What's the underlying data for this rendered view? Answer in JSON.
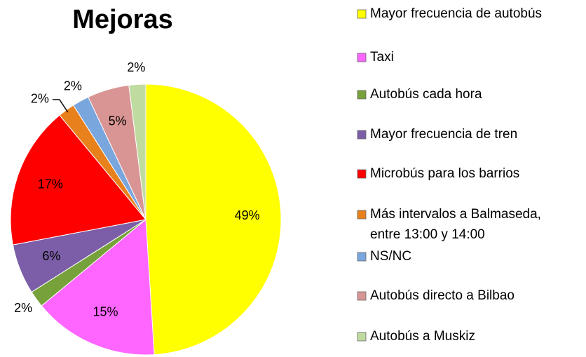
{
  "chart_data": {
    "type": "pie",
    "title": "Mejoras",
    "categories": [
      "Mayor frecuencia de autobús",
      "Taxi",
      "Autobús cada hora",
      "Mayor frecuencia de tren",
      "Microbús para los barrios",
      "Más intervalos a Balmaseda, entre 13:00 y 14:00",
      "NS/NC",
      "Autobús directo a Bilbao",
      "Autobús a Muskiz"
    ],
    "values": [
      49,
      15,
      2,
      6,
      17,
      2,
      2,
      5,
      2
    ],
    "value_labels": [
      "49%",
      "15%",
      "2%",
      "6%",
      "17%",
      "2%",
      "2%",
      "5%",
      "2%"
    ],
    "colors": [
      "#ffff00",
      "#ff66ff",
      "#77a13a",
      "#7b5ea7",
      "#ff0000",
      "#e8801c",
      "#7aa6de",
      "#d99594",
      "#c0dba0"
    ],
    "legend": "right"
  }
}
